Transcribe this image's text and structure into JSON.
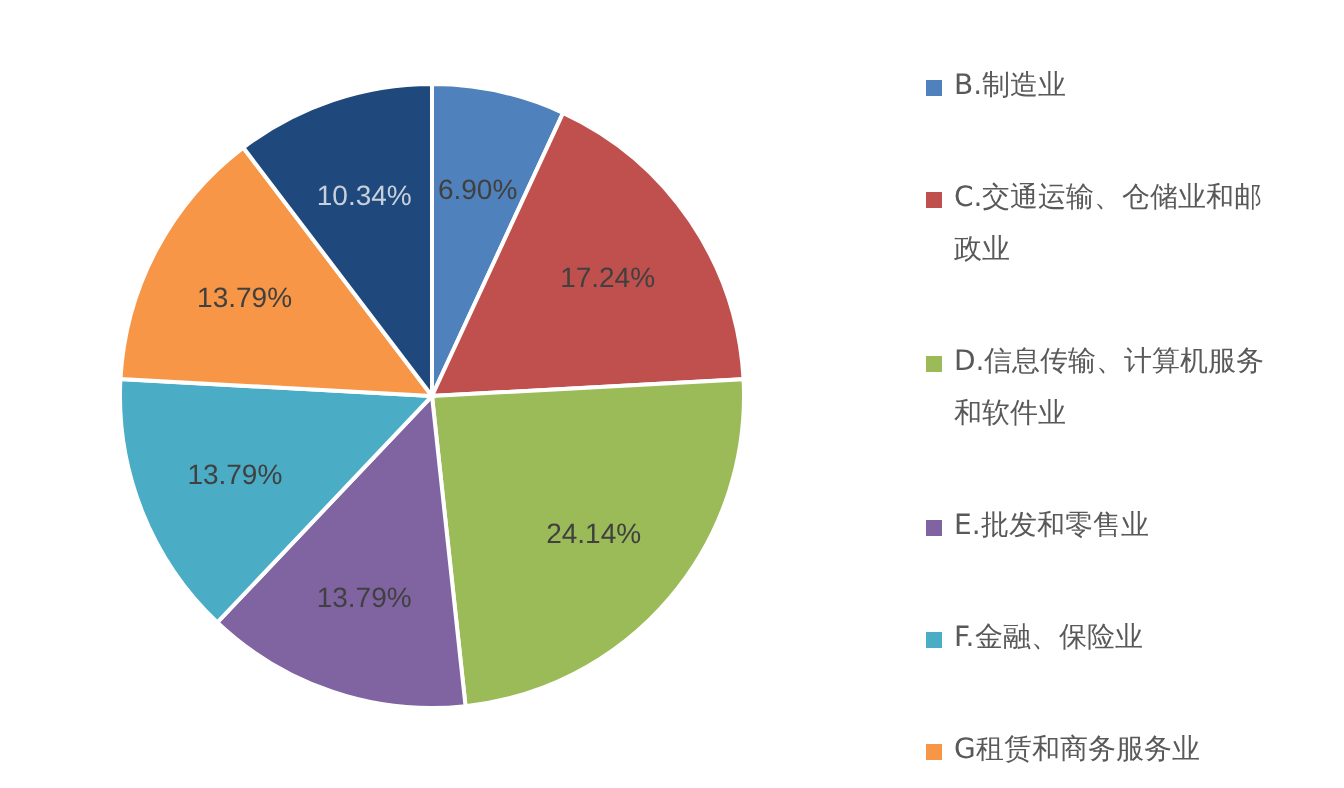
{
  "chart_data": {
    "type": "pie",
    "categories": [
      "B.制造业",
      "C.交通运输、仓储业和邮政业",
      "D.信息传输、计算机服务和软件业",
      "E.批发和零售业",
      "F.金融、保险业",
      "G租赁和商务服务业",
      null
    ],
    "values": [
      6.9,
      17.24,
      24.14,
      13.79,
      13.79,
      13.79,
      10.34
    ],
    "value_labels": [
      "6.90%",
      "17.24%",
      "24.14%",
      "13.79%",
      "13.79%",
      "13.79%",
      "10.34%"
    ],
    "colors": [
      "#4f81bd",
      "#c0504d",
      "#9bbb59",
      "#8064a2",
      "#4bacc6",
      "#f79646",
      "#1f497d"
    ],
    "legend": "right"
  }
}
